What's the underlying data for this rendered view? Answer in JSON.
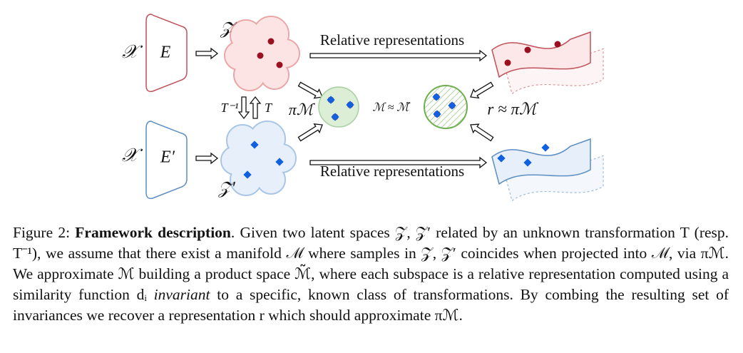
{
  "figure": {
    "labels": {
      "x_top": "𝒳",
      "encoder_top": "E",
      "z_top": "𝒵",
      "rel_top": "Relative representations",
      "t_inv": "T⁻¹",
      "t": "T",
      "pi": "πℳ",
      "approx": "ℳ ≈ ℳ̃",
      "r": "r ≈ πℳ",
      "x_bottom": "𝒳",
      "encoder_bottom": "E′",
      "z_bottom": "𝒵′",
      "rel_bottom": "Relative representations"
    }
  },
  "caption": {
    "label": "Figure 2:",
    "title": "Framework description",
    "text": ". Given two latent spaces 𝒵, 𝒵′ related by an unknown transformation T (resp. T⁻¹), we assume that there exist a manifold ℳ where samples in 𝒵, 𝒵′ coincides when projected into ℳ, via πℳ. We approximate ℳ building a product space ℳ̃, where each subspace is a relative representation computed using a similarity function dᵢ",
    "emphasis": "invariant",
    "text_end": "to a specific, known class of transformations. By combing the resulting set of invariances we recover a representation r which should approximate πℳ."
  }
}
